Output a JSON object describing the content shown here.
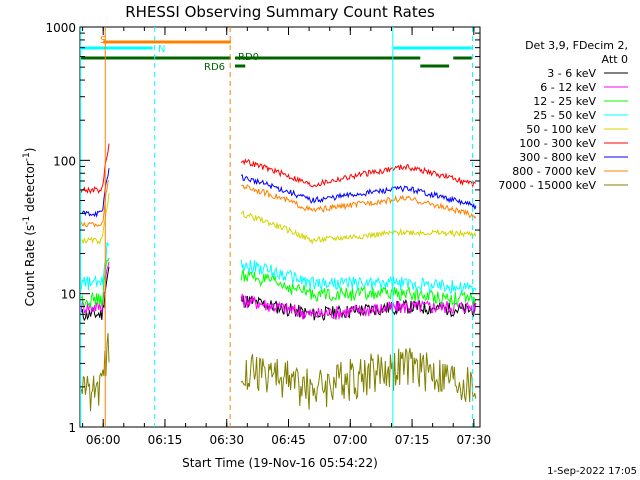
{
  "chart_data": {
    "type": "line",
    "title": "RHESSI Observing Summary Count Rates",
    "xlabel": "Start Time (19-Nov-16 05:54:22)",
    "ylabel_main": "Count Rate (s",
    "ylabel_sup1": "-1",
    "ylabel_mid": " detector",
    "ylabel_sup2": "-1",
    "ylabel_end": ")",
    "y_scale": "log",
    "ylim": [
      1,
      1000
    ],
    "xlim": [
      "05:54:22",
      "07:31:30"
    ],
    "x_ticks": [
      "06:00",
      "06:15",
      "06:30",
      "06:45",
      "07:00",
      "07:15",
      "07:30"
    ],
    "y_ticks": [
      "1",
      "10",
      "100",
      "1000"
    ],
    "timestamp": "1-Sep-2022 17:05",
    "legend": {
      "header_line1": "Det 3,9, FDecim 2,",
      "header_line2": "Att 0",
      "placement": "right"
    },
    "series": [
      {
        "name": "3 - 6 keV",
        "color": "#000000",
        "values": [
          7,
          9,
          7,
          8,
          7.5
        ]
      },
      {
        "name": "6 - 12 keV",
        "color": "#ff00ff",
        "values": [
          8,
          9,
          7,
          8,
          8
        ]
      },
      {
        "name": "12 - 25 keV",
        "color": "#00ff00",
        "values": [
          9,
          14,
          10,
          10,
          9
        ]
      },
      {
        "name": "25 - 50 keV",
        "color": "#00ffff",
        "values": [
          12,
          17,
          12,
          12,
          11
        ]
      },
      {
        "name": "50 - 100 keV",
        "color": "#d4d400",
        "values": [
          25,
          40,
          25,
          29,
          28
        ]
      },
      {
        "name": "100 - 300 keV",
        "color": "#ff0000",
        "values": [
          60,
          100,
          65,
          90,
          65
        ]
      },
      {
        "name": "300 - 800 keV",
        "color": "#0000ff",
        "values": [
          40,
          75,
          50,
          62,
          45
        ]
      },
      {
        "name": "800 - 7000 keV",
        "color": "#ff8000",
        "values": [
          33,
          65,
          42,
          52,
          38
        ]
      },
      {
        "name": "7000 - 15000 keV",
        "color": "#808000",
        "values": [
          2,
          3,
          2,
          3,
          2
        ]
      }
    ],
    "annotations": {
      "saa_label": "S",
      "night_label": "N",
      "rd0_label": "RD0",
      "rd6_label": "RD6"
    }
  }
}
